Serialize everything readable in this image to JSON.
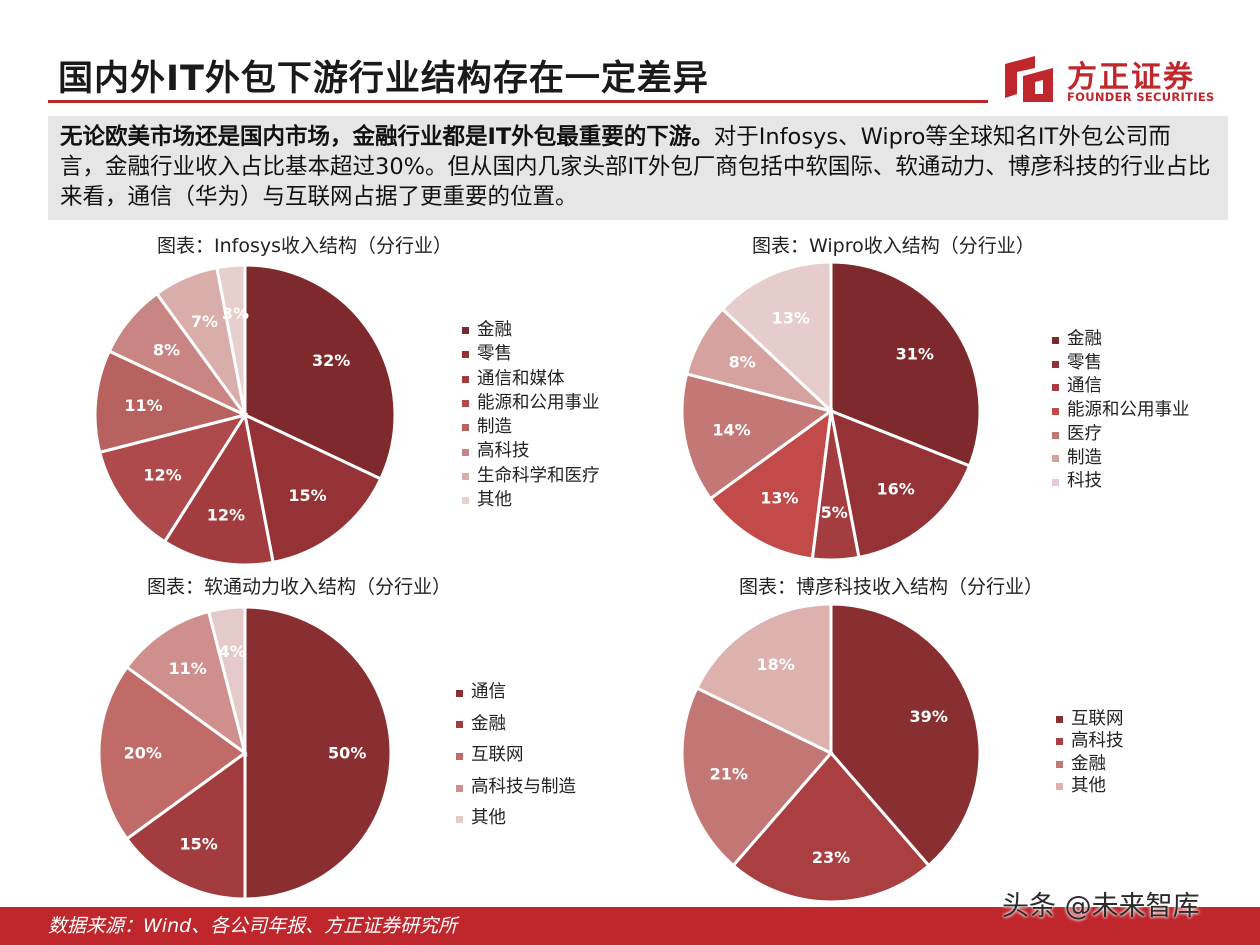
{
  "header": {
    "title": "国内外IT外包下游行业结构存在一定差异",
    "logo_cn": "方正证券",
    "logo_en": "FOUNDER SECURITIES"
  },
  "summary": {
    "bold": "无论欧美市场还是国内市场，金融行业都是IT外包最重要的下游。",
    "rest": "对于Infosys、Wipro等全球知名IT外包公司而言，金融行业收入占比基本超过30%。但从国内几家头部IT外包厂商包括中软国际、软通动力、博彦科技的行业占比来看，通信（华为）与互联网占据了更重要的位置。"
  },
  "footer": {
    "source": "数据来源：Wind、各公司年报、方正证券研究所",
    "watermark": "头条 @未来智库"
  },
  "colors": {
    "brand": "#c0272d",
    "summary_bg": "#e6e6e6"
  },
  "chart_data": [
    {
      "type": "pie",
      "title": "图表：Infosys收入结构（分行业）",
      "categories": [
        "金融",
        "零售",
        "通信和媒体",
        "能源和公用事业",
        "制造",
        "高科技",
        "生命科学和医疗",
        "其他"
      ],
      "values": [
        32,
        15,
        12,
        12,
        11,
        8,
        7,
        3
      ],
      "labels": [
        "32%",
        "15%",
        "12%",
        "12%",
        "11%",
        "8%",
        "7%",
        "3%"
      ],
      "colors": [
        "#7e2a2c",
        "#953235",
        "#a33c3e",
        "#ae4a4b",
        "#b8625f",
        "#c88582",
        "#d9adaa",
        "#e6cfcd"
      ],
      "legend_position": "right"
    },
    {
      "type": "pie",
      "title": "图表：Wipro收入结构（分行业）",
      "categories": [
        "金融",
        "零售",
        "通信",
        "能源和公用事业",
        "医疗",
        "制造",
        "科技"
      ],
      "values": [
        31,
        16,
        5,
        13,
        14,
        8,
        13
      ],
      "labels": [
        "31%",
        "16%",
        "5%",
        "13%",
        "14%",
        "8%",
        "13%"
      ],
      "colors": [
        "#7e2a2c",
        "#953235",
        "#a43d3f",
        "#c24a48",
        "#c37875",
        "#d5a2a0",
        "#e6cdcb"
      ],
      "legend_position": "right"
    },
    {
      "type": "pie",
      "title": "图表：软通动力收入结构（分行业）",
      "categories": [
        "通信",
        "金融",
        "互联网",
        "高科技与制造",
        "其他"
      ],
      "values": [
        50,
        15,
        20,
        11,
        4
      ],
      "labels": [
        "50%",
        "15%",
        "20%",
        "11%",
        "4%"
      ],
      "colors": [
        "#8a2f31",
        "#a33c3e",
        "#c16b68",
        "#cf8f8c",
        "#e4cbc9"
      ],
      "legend_position": "right"
    },
    {
      "type": "pie",
      "title": "图表：博彦科技收入结构（分行业）",
      "categories": [
        "互联网",
        "高科技",
        "金融",
        "其他"
      ],
      "values": [
        39,
        23,
        21,
        18
      ],
      "labels": [
        "39%",
        "23%",
        "21%",
        "18%"
      ],
      "colors": [
        "#8a2f31",
        "#a93f40",
        "#c37774",
        "#dcb1ae"
      ],
      "legend_position": "right"
    }
  ]
}
